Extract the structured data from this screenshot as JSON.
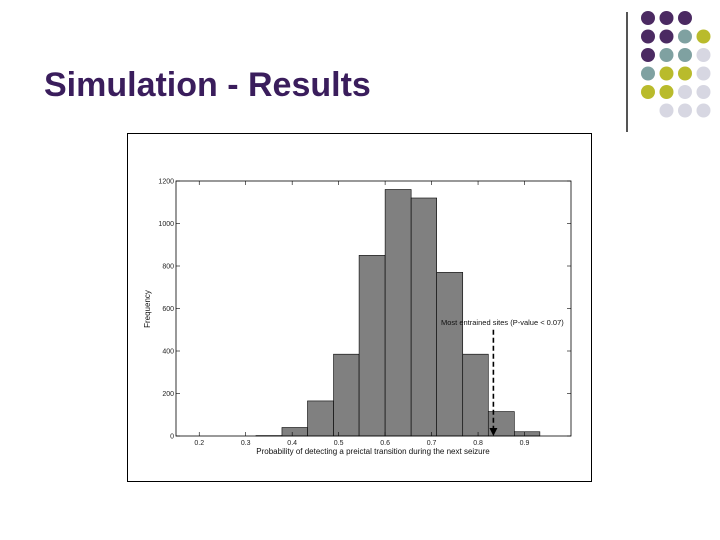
{
  "slide": {
    "title": "Simulation - Results"
  },
  "decoration": {
    "dot_colors": {
      "purple": "#4b2a62",
      "teal": "#7fa1a1",
      "olive": "#b9bb2c",
      "light": "#d7d7e2"
    },
    "dot_rows": [
      [
        "purple",
        "purple",
        "purple",
        null
      ],
      [
        "purple",
        "purple",
        "teal",
        "olive"
      ],
      [
        "purple",
        "teal",
        "teal",
        "light"
      ],
      [
        "teal",
        "olive",
        "olive",
        "light"
      ],
      [
        "olive",
        "olive",
        "light",
        "light"
      ],
      [
        null,
        "light",
        "light",
        "light"
      ]
    ]
  },
  "chart_data": {
    "type": "bar",
    "title": "",
    "xlabel": "Probability of detecting a preictal transition during the next seizure",
    "ylabel": "Frequency",
    "xlim": [
      0.15,
      1.0
    ],
    "ylim": [
      0,
      1200
    ],
    "x_ticks": [
      0.2,
      0.3,
      0.4,
      0.5,
      0.6,
      0.7,
      0.8,
      0.9
    ],
    "x_tick_labels": [
      "0.2",
      "0.3",
      "0.4",
      "0.5",
      "0.6",
      "0.7",
      "0.8",
      "0.9"
    ],
    "y_ticks": [
      0,
      200,
      400,
      600,
      800,
      1000,
      1200
    ],
    "y_tick_labels": [
      "0",
      "200",
      "400",
      "600",
      "800",
      "1000",
      "1200"
    ],
    "bar_color": "#808080",
    "bins": [
      {
        "x0": 0.322,
        "x1": 0.378,
        "value": 2
      },
      {
        "x0": 0.378,
        "x1": 0.433,
        "value": 40
      },
      {
        "x0": 0.433,
        "x1": 0.489,
        "value": 165
      },
      {
        "x0": 0.489,
        "x1": 0.544,
        "value": 385
      },
      {
        "x0": 0.544,
        "x1": 0.6,
        "value": 850
      },
      {
        "x0": 0.6,
        "x1": 0.656,
        "value": 1160
      },
      {
        "x0": 0.656,
        "x1": 0.711,
        "value": 1120
      },
      {
        "x0": 0.711,
        "x1": 0.767,
        "value": 770
      },
      {
        "x0": 0.767,
        "x1": 0.822,
        "value": 385
      },
      {
        "x0": 0.822,
        "x1": 0.878,
        "value": 115
      },
      {
        "x0": 0.878,
        "x1": 0.933,
        "value": 20
      }
    ],
    "annotation": {
      "text": "Most entrained sites (P-value < 0.07)",
      "x": 0.833,
      "y_top": 500,
      "y_bottom": 0
    },
    "grid": false
  }
}
